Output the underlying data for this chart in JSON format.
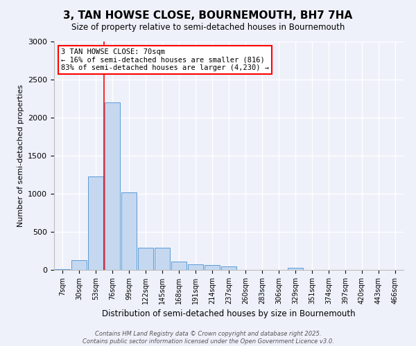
{
  "title": "3, TAN HOWSE CLOSE, BOURNEMOUTH, BH7 7HA",
  "subtitle": "Size of property relative to semi-detached houses in Bournemouth",
  "xlabel": "Distribution of semi-detached houses by size in Bournemouth",
  "ylabel": "Number of semi-detached properties",
  "categories": [
    "7sqm",
    "30sqm",
    "53sqm",
    "76sqm",
    "99sqm",
    "122sqm",
    "145sqm",
    "168sqm",
    "191sqm",
    "214sqm",
    "237sqm",
    "260sqm",
    "283sqm",
    "306sqm",
    "329sqm",
    "351sqm",
    "374sqm",
    "397sqm",
    "420sqm",
    "443sqm",
    "466sqm"
  ],
  "values": [
    10,
    130,
    1230,
    2200,
    1020,
    290,
    295,
    110,
    75,
    60,
    50,
    0,
    0,
    0,
    30,
    0,
    0,
    0,
    0,
    0,
    0
  ],
  "bar_color": "#c5d8f0",
  "bar_edge_color": "#5b9bd5",
  "property_line_bin": 2,
  "annotation_text": "3 TAN HOWSE CLOSE: 70sqm\n← 16% of semi-detached houses are smaller (816)\n83% of semi-detached houses are larger (4,230) →",
  "ylim": [
    0,
    3000
  ],
  "yticks": [
    0,
    500,
    1000,
    1500,
    2000,
    2500,
    3000
  ],
  "background_color": "#eef1fa",
  "grid_color": "#ffffff",
  "footer_line1": "Contains HM Land Registry data © Crown copyright and database right 2025.",
  "footer_line2": "Contains public sector information licensed under the Open Government Licence v3.0."
}
